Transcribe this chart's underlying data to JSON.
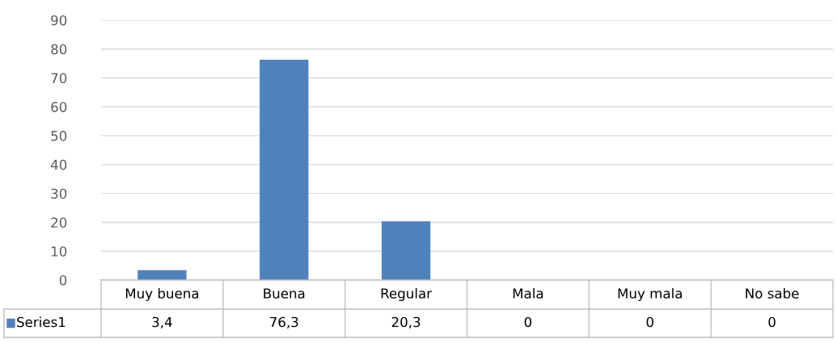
{
  "chart_data": {
    "type": "bar",
    "categories": [
      "Muy buena",
      "Buena",
      "Regular",
      "Mala",
      "Muy mala",
      "No sabe"
    ],
    "series": [
      {
        "name": "Series1",
        "color": "#4f81bd",
        "values": [
          3.4,
          76.3,
          20.3,
          0,
          0,
          0
        ],
        "value_labels": [
          "3,4",
          "76,3",
          "20,3",
          "0",
          "0",
          "0"
        ]
      }
    ],
    "ylim": [
      0,
      90
    ],
    "yticks": [
      0,
      10,
      20,
      30,
      40,
      50,
      60,
      70,
      80,
      90
    ],
    "grid": "y",
    "legend": "bottom"
  }
}
